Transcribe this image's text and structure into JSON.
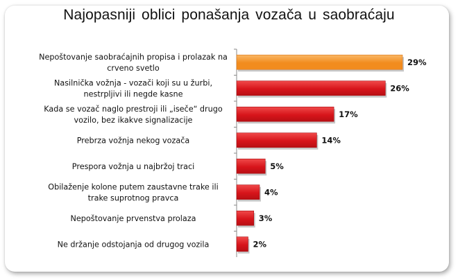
{
  "chart_data": {
    "type": "bar",
    "orientation": "horizontal",
    "title": "Najopasniji  oblici  ponašanja  vozača  u  saobraćaju",
    "categories": [
      [
        "Nepoštovanje saobraćajnih propisa i prolazak na",
        "crveno svetlo"
      ],
      [
        "Nasilnička vožnja - vozači koji su u žurbi,",
        "nestrpljivi ili negde kasne"
      ],
      [
        "Kada se vozač naglo prestroji ili „iseče“ drugo",
        "vozilo, bez ikakve signalizacije"
      ],
      [
        "Prebrza vožnja nekog vozača"
      ],
      [
        "Prespora vožnja u najbržoj traci"
      ],
      [
        "Obilaženje kolone putem zaustavne trake ili",
        "trake suprotnog pravca"
      ],
      [
        "Nepoštovanje prvenstva prolaza"
      ],
      [
        "Ne držanje odstojanja od drugog vozila"
      ]
    ],
    "values": [
      29,
      26,
      17,
      14,
      5,
      4,
      3,
      2
    ],
    "value_labels": [
      "29%",
      "26%",
      "17%",
      "14%",
      "5%",
      "4%",
      "3%",
      "2%"
    ],
    "unit": "%",
    "xlim": [
      0,
      29
    ],
    "grid": false,
    "legend": "none",
    "colors": {
      "highlight": "#f28c1e",
      "highlight_light": "#f9b766",
      "bar": "#d7151b",
      "bar_light": "#f04a4a",
      "axis": "#888888"
    },
    "highlight_index": 0
  }
}
